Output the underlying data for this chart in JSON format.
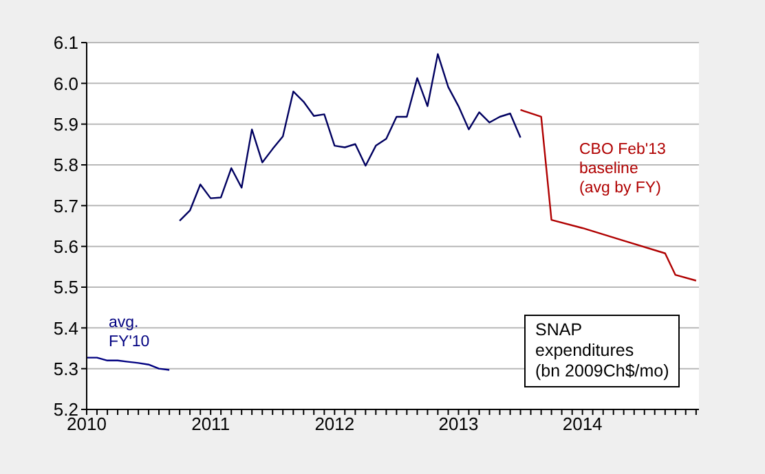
{
  "chart_data": {
    "type": "line",
    "xlim": [
      2010,
      2014.94
    ],
    "ylim": [
      5.2,
      6.1
    ],
    "xticks": [
      2010,
      {
        "value": 2010.083,
        "label": null
      },
      {
        "value": 2010.167,
        "label": null
      },
      {
        "value": 2010.25,
        "label": null
      },
      {
        "value": 2010.333,
        "label": null
      },
      {
        "value": 2010.417,
        "label": null
      },
      {
        "value": 2010.5,
        "label": null
      },
      {
        "value": 2010.583,
        "label": null
      },
      {
        "value": 2010.667,
        "label": null
      },
      {
        "value": 2010.75,
        "label": null
      },
      {
        "value": 2010.833,
        "label": null
      },
      {
        "value": 2010.917,
        "label": null
      },
      2011,
      {
        "value": 2011.083,
        "label": null
      },
      {
        "value": 2011.167,
        "label": null
      },
      {
        "value": 2011.25,
        "label": null
      },
      {
        "value": 2011.333,
        "label": null
      },
      {
        "value": 2011.417,
        "label": null
      },
      {
        "value": 2011.5,
        "label": null
      },
      {
        "value": 2011.583,
        "label": null
      },
      {
        "value": 2011.667,
        "label": null
      },
      {
        "value": 2011.75,
        "label": null
      },
      {
        "value": 2011.833,
        "label": null
      },
      {
        "value": 2011.917,
        "label": null
      },
      2012,
      {
        "value": 2012.083,
        "label": null
      },
      {
        "value": 2012.167,
        "label": null
      },
      {
        "value": 2012.25,
        "label": null
      },
      {
        "value": 2012.333,
        "label": null
      },
      {
        "value": 2012.417,
        "label": null
      },
      {
        "value": 2012.5,
        "label": null
      },
      {
        "value": 2012.583,
        "label": null
      },
      {
        "value": 2012.667,
        "label": null
      },
      {
        "value": 2012.75,
        "label": null
      },
      {
        "value": 2012.833,
        "label": null
      },
      {
        "value": 2012.917,
        "label": null
      },
      2013,
      {
        "value": 2013.083,
        "label": null
      },
      {
        "value": 2013.167,
        "label": null
      },
      {
        "value": 2013.25,
        "label": null
      },
      {
        "value": 2013.333,
        "label": null
      },
      {
        "value": 2013.417,
        "label": null
      },
      {
        "value": 2013.5,
        "label": null
      },
      {
        "value": 2013.583,
        "label": null
      },
      {
        "value": 2013.667,
        "label": null
      },
      {
        "value": 2013.75,
        "label": null
      },
      {
        "value": 2013.833,
        "label": null
      },
      {
        "value": 2013.917,
        "label": null
      },
      2014,
      {
        "value": 2014.083,
        "label": null
      },
      {
        "value": 2014.167,
        "label": null
      },
      {
        "value": 2014.25,
        "label": null
      },
      {
        "value": 2014.333,
        "label": null
      },
      {
        "value": 2014.417,
        "label": null
      },
      {
        "value": 2014.5,
        "label": null
      },
      {
        "value": 2014.583,
        "label": null
      },
      {
        "value": 2014.667,
        "label": null
      },
      {
        "value": 2014.75,
        "label": null
      },
      {
        "value": 2014.833,
        "label": null
      },
      {
        "value": 2014.917,
        "label": null
      }
    ],
    "yticks": [
      5.2,
      5.3,
      5.4,
      5.5,
      5.6,
      5.7,
      5.8,
      5.9,
      {
        "value": 6,
        "label": "6.0"
      },
      6.1
    ],
    "grid": "y",
    "legend": false,
    "marker": "none",
    "line_style": "solid",
    "series": [
      {
        "color": "#000080",
        "x": [
          2010,
          2010.083,
          2010.167,
          2010.25,
          2010.333,
          2010.417,
          2010.5,
          2010.583,
          2010.667
        ],
        "values": [
          5.327,
          5.327,
          5.32,
          5.32,
          5.317,
          5.314,
          5.31,
          5.3,
          5.297
        ]
      },
      {
        "color": "#000060",
        "x": [
          2010.75,
          2010.833,
          2010.917,
          2011,
          2011.083,
          2011.167,
          2011.25,
          2011.333,
          2011.417,
          2011.5,
          2011.583,
          2011.667,
          2011.75,
          2011.833,
          2011.917,
          2012,
          2012.083,
          2012.167,
          2012.25,
          2012.333,
          2012.417,
          2012.5,
          2012.583,
          2012.667,
          2012.75,
          2012.833,
          2012.917,
          2013,
          2013.083,
          2013.167,
          2013.25,
          2013.333,
          2013.417,
          2013.5
        ],
        "values": [
          5.663,
          5.688,
          5.752,
          5.718,
          5.72,
          5.792,
          5.744,
          5.887,
          5.806,
          5.839,
          5.87,
          5.98,
          5.955,
          5.92,
          5.924,
          5.847,
          5.843,
          5.851,
          5.798,
          5.847,
          5.864,
          5.918,
          5.918,
          6.013,
          5.944,
          6.072,
          5.991,
          5.944,
          5.887,
          5.929,
          5.904,
          5.918,
          5.926,
          5.867
        ]
      },
      {
        "color": "#b00000",
        "x": [
          2013.5,
          2013.667,
          2013.75,
          2014,
          2014.333,
          2014.667,
          2014.75,
          2014.917
        ],
        "values": [
          5.935,
          5.918,
          5.665,
          5.645,
          5.614,
          5.583,
          5.53,
          5.516
        ]
      }
    ],
    "annotations": [
      "avg.\nFY'10",
      "CBO Feb'13\nbaseline\n(avg by FY)",
      "SNAP\nexpenditures\n(bn 2009Ch$/mo)"
    ]
  }
}
